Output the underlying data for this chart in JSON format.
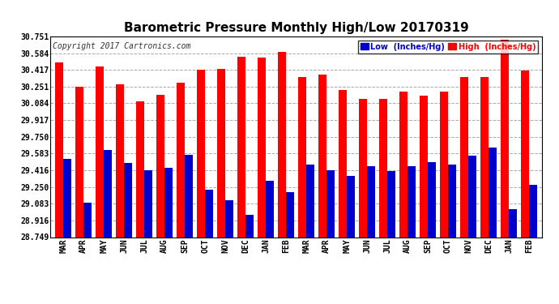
{
  "title": "Barometric Pressure Monthly High/Low 20170319",
  "copyright": "Copyright 2017 Cartronics.com",
  "legend_low": "Low  (Inches/Hg)",
  "legend_high": "High  (Inches/Hg)",
  "months": [
    "MAR",
    "APR",
    "MAY",
    "JUN",
    "JUL",
    "AUG",
    "SEP",
    "OCT",
    "NOV",
    "DEC",
    "JAN",
    "FEB",
    "MAR",
    "APR",
    "MAY",
    "JUN",
    "JUL",
    "AUG",
    "SEP",
    "OCT",
    "NOV",
    "DEC",
    "JAN",
    "FEB"
  ],
  "high_values": [
    30.49,
    30.25,
    30.45,
    30.27,
    30.1,
    30.17,
    30.29,
    30.42,
    30.43,
    30.55,
    30.54,
    30.6,
    30.35,
    30.37,
    30.22,
    30.13,
    30.13,
    30.2,
    30.16,
    30.2,
    30.35,
    30.35,
    30.72,
    30.41
  ],
  "low_values": [
    29.53,
    29.09,
    29.62,
    29.49,
    29.42,
    29.44,
    29.57,
    29.22,
    29.12,
    28.97,
    29.31,
    29.2,
    29.47,
    29.42,
    29.36,
    29.46,
    29.41,
    29.46,
    29.5,
    29.47,
    29.56,
    29.64,
    29.03,
    29.27
  ],
  "ymin": 28.749,
  "ymax": 30.751,
  "yticks": [
    28.749,
    28.916,
    29.083,
    29.25,
    29.416,
    29.583,
    29.75,
    29.917,
    30.084,
    30.251,
    30.417,
    30.584,
    30.751
  ],
  "ytick_labels": [
    "28.749",
    "28.916",
    "29.083",
    "29.250",
    "29.416",
    "29.583",
    "29.750",
    "29.917",
    "30.084",
    "30.251",
    "30.417",
    "30.584",
    "30.751"
  ],
  "bar_width": 0.4,
  "high_color": "#ff0000",
  "low_color": "#0000cc",
  "background_color": "#ffffff",
  "grid_color": "#aaaaaa",
  "title_fontsize": 11,
  "copyright_fontsize": 7,
  "legend_bg_low": "#0000cc",
  "legend_bg_high": "#ff0000"
}
